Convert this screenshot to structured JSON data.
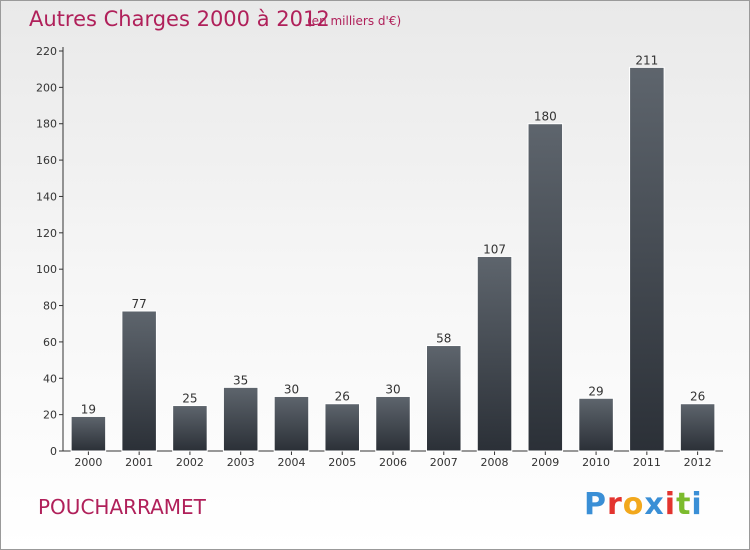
{
  "header": {
    "title": "Autres Charges 2000 à 2012",
    "subtitle": "(en milliers d'€)"
  },
  "place_name": "POUCHARRAMET",
  "logo": {
    "text": "Proxiti",
    "letter_colors": [
      "#3a8fd6",
      "#e3342f",
      "#f2a81d",
      "#3a8fd6",
      "#e3342f",
      "#7cbb2d",
      "#3a8fd6"
    ]
  },
  "colors": {
    "title": "#b0205a",
    "bar_top": "#5e656d",
    "bar_bottom": "#2b3037",
    "axis": "#333333"
  },
  "chart_data": {
    "type": "bar",
    "title": "Autres Charges 2000 à 2012",
    "subtitle": "(en milliers d'€)",
    "categories": [
      "2000",
      "2001",
      "2002",
      "2003",
      "2004",
      "2005",
      "2006",
      "2007",
      "2008",
      "2009",
      "2010",
      "2011",
      "2012"
    ],
    "values": [
      19,
      77,
      25,
      35,
      30,
      26,
      30,
      58,
      107,
      180,
      29,
      211,
      26
    ],
    "ylim": [
      0,
      220
    ],
    "yticks": [
      0,
      20,
      40,
      60,
      80,
      100,
      120,
      140,
      160,
      180,
      200,
      220
    ],
    "data_labels": true,
    "grid": false,
    "legend": "none"
  }
}
